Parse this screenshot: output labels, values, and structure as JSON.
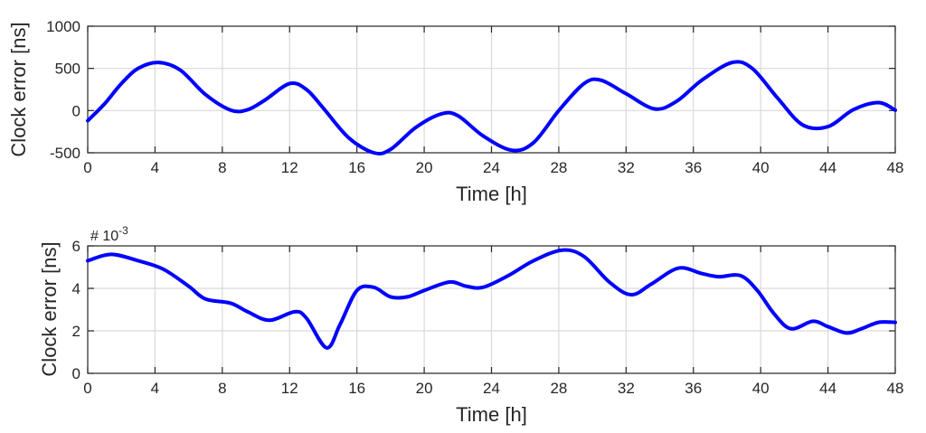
{
  "colors": {
    "series": "#0000ff",
    "grid": "#d9d9d9",
    "axis": "#262626"
  },
  "chart_data": [
    {
      "type": "line",
      "xlabel": "Time [h]",
      "ylabel": "Clock error [ns]",
      "xlim": [
        0,
        48
      ],
      "ylim": [
        -500,
        1000
      ],
      "xticks": [
        0,
        4,
        8,
        12,
        16,
        20,
        24,
        28,
        32,
        36,
        40,
        44,
        48
      ],
      "yticks": [
        -500,
        0,
        500,
        1000
      ],
      "ytick_labels": [
        "-500",
        "0",
        "500",
        "1000"
      ],
      "grid": true,
      "series": [
        {
          "x": [
            0,
            1,
            2,
            3,
            4.2,
            5.5,
            7,
            8.5,
            9.5,
            10.5,
            12,
            13,
            14,
            15.5,
            17,
            18,
            19.5,
            21,
            22,
            23.5,
            25.2,
            26.5,
            28,
            29.5,
            30.5,
            32,
            33.7,
            35,
            36.5,
            38.3,
            39.5,
            41,
            42.5,
            44,
            45.5,
            47,
            48
          ],
          "y": [
            -120,
            80,
            320,
            500,
            570,
            480,
            190,
            5,
            10,
            120,
            320,
            250,
            30,
            -320,
            -500,
            -460,
            -200,
            -40,
            -60,
            -300,
            -470,
            -380,
            0,
            320,
            360,
            200,
            20,
            110,
            360,
            570,
            500,
            150,
            -170,
            -190,
            10,
            95,
            5
          ]
        }
      ]
    },
    {
      "type": "line",
      "xlabel": "Time [h]",
      "ylabel": "Clock error [ns]",
      "exponent_label": "# 10",
      "exponent_power": "-3",
      "xlim": [
        0,
        48
      ],
      "ylim": [
        0,
        6
      ],
      "xticks": [
        0,
        4,
        8,
        12,
        16,
        20,
        24,
        28,
        32,
        36,
        40,
        44,
        48
      ],
      "yticks": [
        0,
        2,
        4,
        6
      ],
      "ytick_labels": [
        "0",
        "2",
        "4",
        "6"
      ],
      "grid": true,
      "series": [
        {
          "x": [
            0,
            1.4,
            3,
            4.5,
            6,
            7,
            8.5,
            9.5,
            10.8,
            12.3,
            13,
            14.2,
            15,
            16,
            17,
            18,
            19,
            20,
            21.5,
            22.5,
            23.5,
            25,
            26.5,
            28.2,
            29.5,
            31,
            32.3,
            33.5,
            35.1,
            36.5,
            37.5,
            38.8,
            39.8,
            40.8,
            41.8,
            43.1,
            44,
            45.1,
            46,
            47,
            48
          ],
          "y": [
            5.3,
            5.6,
            5.3,
            4.9,
            4.1,
            3.5,
            3.3,
            2.9,
            2.5,
            2.9,
            2.6,
            1.2,
            2.3,
            3.9,
            4.05,
            3.6,
            3.6,
            3.9,
            4.3,
            4.1,
            4.05,
            4.6,
            5.3,
            5.8,
            5.5,
            4.3,
            3.7,
            4.2,
            4.95,
            4.7,
            4.55,
            4.6,
            3.9,
            2.8,
            2.1,
            2.45,
            2.2,
            1.9,
            2.1,
            2.4,
            2.4
          ]
        }
      ]
    }
  ]
}
